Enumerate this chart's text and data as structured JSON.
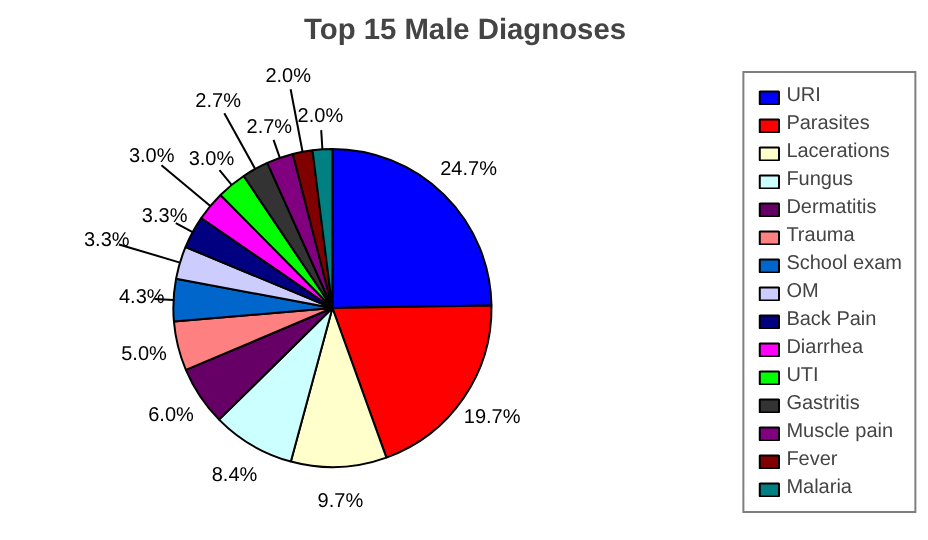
{
  "chart_data": {
    "type": "pie",
    "title": "Top 15 Male Diagnoses",
    "categories": [
      "URI",
      "Parasites",
      "Lacerations",
      "Fungus",
      "Dermatitis",
      "Trauma",
      "School exam",
      "OM",
      "Back Pain",
      "Diarrhea",
      "UTI",
      "Gastritis",
      "Muscle pain",
      "Fever",
      "Malaria"
    ],
    "values": [
      24.7,
      19.7,
      9.7,
      8.4,
      6.0,
      5.0,
      4.3,
      3.3,
      3.3,
      3.0,
      3.0,
      2.7,
      2.7,
      2.0,
      2.0
    ],
    "value_labels": [
      "24.7%",
      "19.7%",
      "9.7%",
      "8.4%",
      "6.0%",
      "5.0%",
      "4.3%",
      "3.3%",
      "3.3%",
      "3.0%",
      "3.0%",
      "2.7%",
      "2.7%",
      "2.0%",
      "2.0%"
    ],
    "colors": [
      "#0000ff",
      "#ff0000",
      "#ffffcc",
      "#ccffff",
      "#660066",
      "#ff8080",
      "#0066cc",
      "#ccccff",
      "#000080",
      "#ff00ff",
      "#00ff00",
      "#333333",
      "#800080",
      "#800000",
      "#008080"
    ],
    "legend": "right"
  }
}
